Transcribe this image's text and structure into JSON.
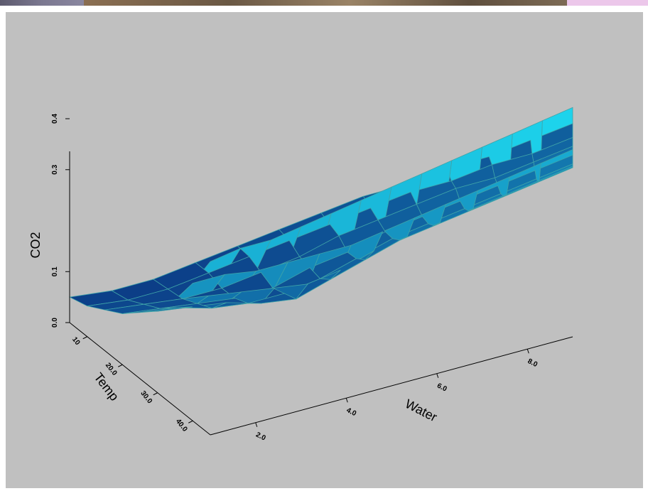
{
  "chart_data": {
    "type": "surface",
    "zlabel": "CO2",
    "xlabel": "Water",
    "ylabel": "Temp",
    "z_ticks": [
      "0.0",
      "0.1",
      "0.3",
      "0.4"
    ],
    "z_tick_values": [
      0.0,
      0.1,
      0.3,
      0.4
    ],
    "water_ticks": [
      "2.0",
      "4.0",
      "6.0",
      "8.0"
    ],
    "water_tick_values": [
      2.0,
      4.0,
      6.0,
      8.0
    ],
    "temp_ticks": [
      "10",
      "20.0",
      "30.0",
      "40.0"
    ],
    "temp_tick_values": [
      10,
      20,
      30,
      40
    ],
    "water_range": [
      1.0,
      9.0
    ],
    "temp_range": [
      5.0,
      45.0
    ],
    "z_range": [
      0.0,
      0.46
    ],
    "water_grid": [
      1.0,
      1.67,
      2.33,
      3.0,
      3.67,
      4.33,
      5.0,
      5.67,
      6.33,
      7.0,
      7.67,
      8.33,
      9.0
    ],
    "temp_grid": [
      5,
      10,
      15,
      20,
      25,
      30,
      35,
      40,
      45
    ],
    "co2_values": [
      [
        0.05,
        0.04,
        0.04,
        0.05,
        0.06,
        0.07,
        0.08,
        0.09,
        0.09,
        0.1,
        0.1,
        0.11,
        0.12
      ],
      [
        0.06,
        0.05,
        0.05,
        0.06,
        0.07,
        0.08,
        0.09,
        0.1,
        0.11,
        0.11,
        0.12,
        0.12,
        0.13
      ],
      [
        0.08,
        0.07,
        0.06,
        0.06,
        0.07,
        0.08,
        0.1,
        0.11,
        0.12,
        0.13,
        0.13,
        0.14,
        0.15
      ],
      [
        0.1,
        0.09,
        0.08,
        0.07,
        0.07,
        0.09,
        0.1,
        0.12,
        0.13,
        0.14,
        0.15,
        0.16,
        0.17
      ],
      [
        0.13,
        0.12,
        0.1,
        0.09,
        0.09,
        0.1,
        0.12,
        0.14,
        0.15,
        0.16,
        0.17,
        0.18,
        0.19
      ],
      [
        0.16,
        0.15,
        0.14,
        0.12,
        0.11,
        0.13,
        0.15,
        0.17,
        0.18,
        0.19,
        0.2,
        0.21,
        0.22
      ],
      [
        0.21,
        0.2,
        0.19,
        0.18,
        0.17,
        0.18,
        0.2,
        0.21,
        0.22,
        0.23,
        0.24,
        0.25,
        0.26
      ],
      [
        0.27,
        0.27,
        0.26,
        0.26,
        0.26,
        0.26,
        0.27,
        0.28,
        0.29,
        0.3,
        0.31,
        0.32,
        0.33
      ],
      [
        0.34,
        0.35,
        0.35,
        0.36,
        0.37,
        0.38,
        0.39,
        0.4,
        0.41,
        0.42,
        0.43,
        0.44,
        0.45
      ]
    ],
    "colors": {
      "low": "#0a2a7a",
      "high": "#20f0ff",
      "panel": "#c0c0c0",
      "grid_line": "#3fa3a8"
    },
    "grid": false,
    "legend": "none"
  }
}
